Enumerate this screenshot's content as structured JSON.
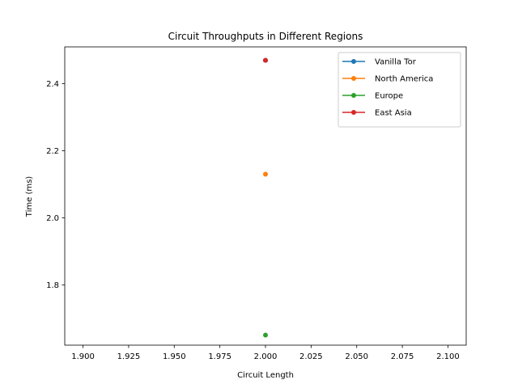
{
  "chart_data": {
    "type": "line",
    "title": "Circuit Throughputs in Different Regions",
    "xlabel": "Circuit Length",
    "ylabel": "Time (ms)",
    "xlim": [
      1.89,
      2.11
    ],
    "ylim": [
      1.62,
      2.51
    ],
    "xticks": [
      1.9,
      1.925,
      1.95,
      1.975,
      2.0,
      2.025,
      2.05,
      2.075,
      2.1
    ],
    "xtick_labels": [
      "1.900",
      "1.925",
      "1.950",
      "1.975",
      "2.000",
      "2.025",
      "2.050",
      "2.075",
      "2.100"
    ],
    "yticks": [
      1.8,
      2.0,
      2.2,
      2.4
    ],
    "ytick_labels": [
      "1.8",
      "2.0",
      "2.2",
      "2.4"
    ],
    "grid": false,
    "legend_position": "upper right",
    "series": [
      {
        "name": "Vanilla Tor",
        "color": "#1f77b4",
        "x": [
          2.0
        ],
        "y": [
          2.47
        ]
      },
      {
        "name": "North America",
        "color": "#ff7f0e",
        "x": [
          2.0
        ],
        "y": [
          2.13
        ]
      },
      {
        "name": "Europe",
        "color": "#2ca02c",
        "x": [
          2.0
        ],
        "y": [
          1.65
        ]
      },
      {
        "name": "East Asia",
        "color": "#d62728",
        "x": [
          2.0
        ],
        "y": [
          2.47
        ]
      }
    ]
  }
}
